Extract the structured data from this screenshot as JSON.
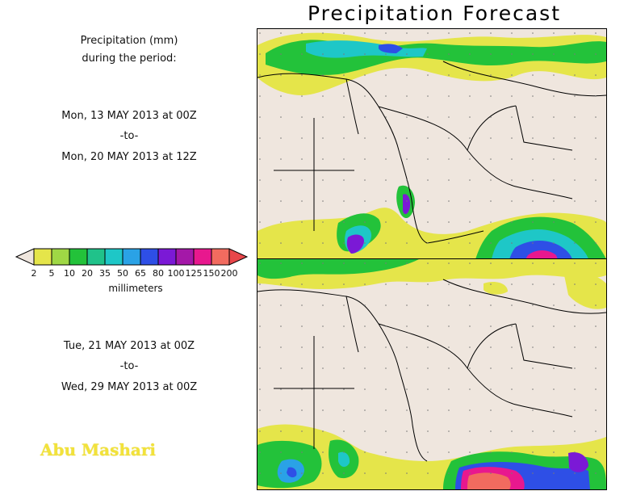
{
  "title": "Precipitation Forecast",
  "header": {
    "line1": "Precipitation (mm)",
    "line2": "during the period:"
  },
  "period1": {
    "start": "Mon, 13 MAY 2013 at 00Z",
    "to": "-to-",
    "end": "Mon, 20 MAY 2013 at 12Z"
  },
  "period2": {
    "start": "Tue, 21 MAY 2013 at 00Z",
    "to": "-to-",
    "end": "Wed, 29 MAY 2013 at 00Z"
  },
  "legend": {
    "units": "millimeters",
    "labels": [
      "2",
      "5",
      "10",
      "20",
      "35",
      "50",
      "65",
      "80",
      "100",
      "125",
      "150",
      "200"
    ],
    "colors": [
      "#efe6de",
      "#e5e54a",
      "#9fd845",
      "#23c23a",
      "#20c28a",
      "#1ec7c7",
      "#2aa2e6",
      "#2e4fe6",
      "#7b19d6",
      "#a418a8",
      "#e8188e",
      "#f26b5f",
      "#e8464a"
    ]
  },
  "watermark": "Abu Mashari"
}
